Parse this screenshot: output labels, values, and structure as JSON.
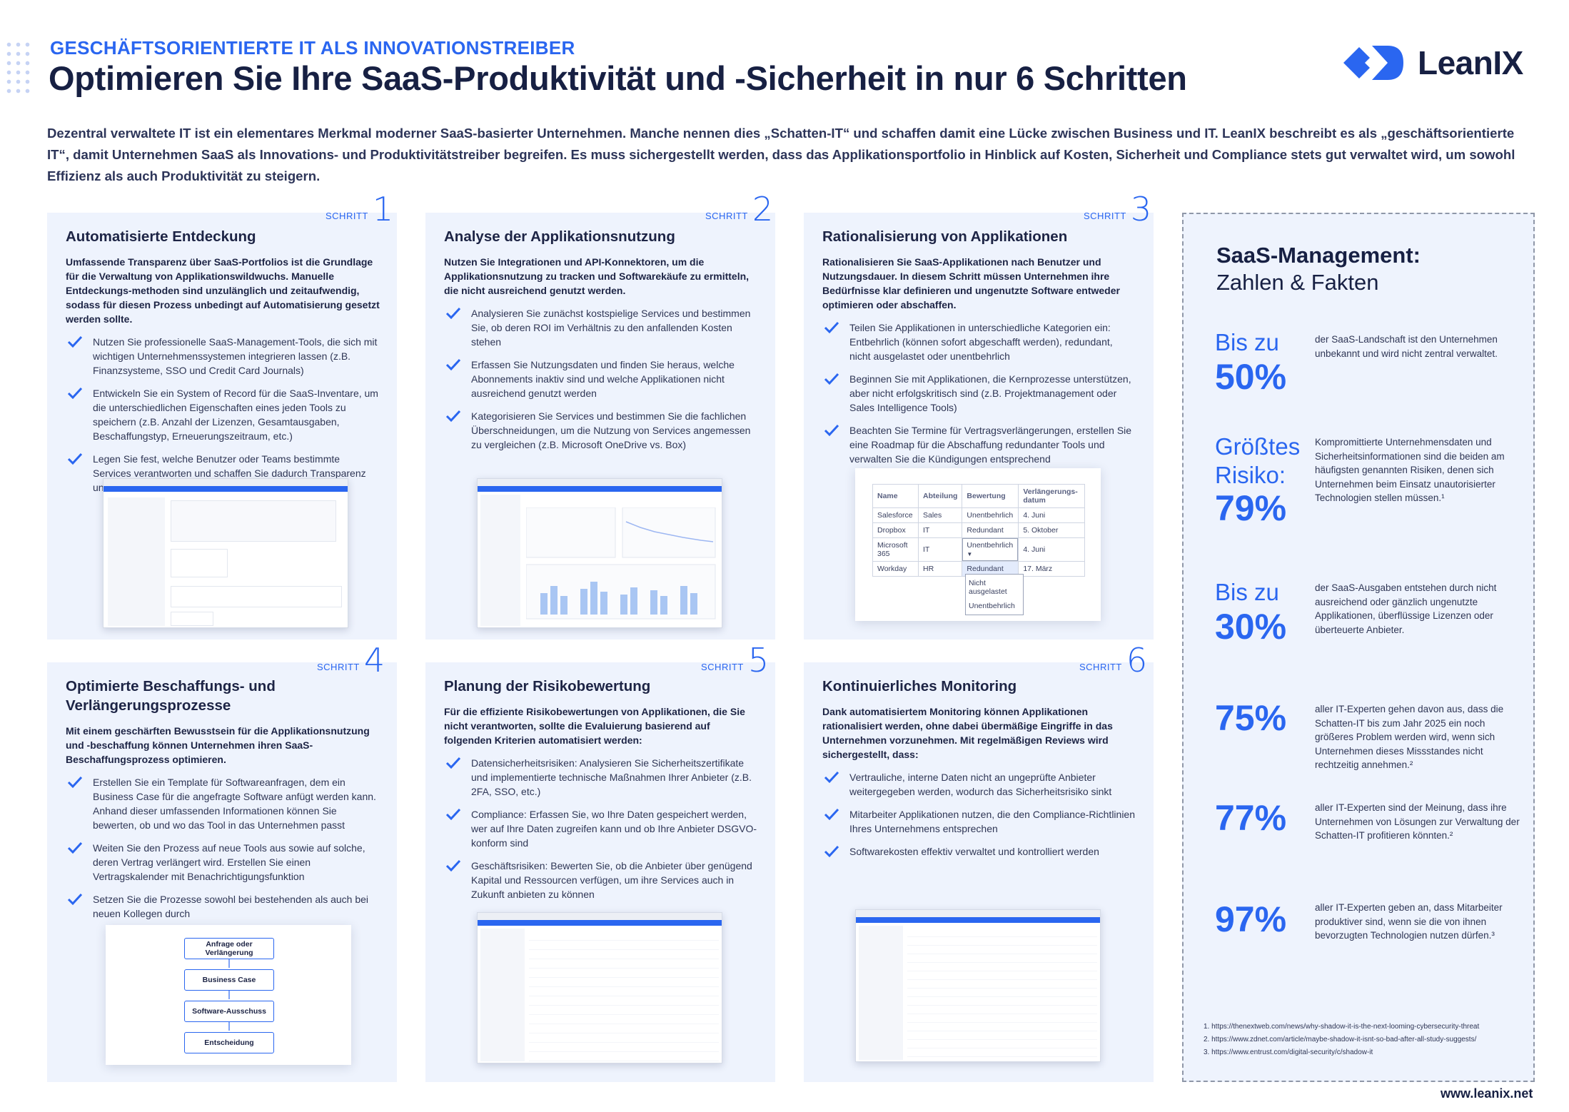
{
  "header": {
    "eyebrow": "GESCHÄFTSORIENTIERTE IT ALS INNOVATIONSTREIBER",
    "headline": "Optimieren Sie Ihre SaaS-Produktivität und -Sicherheit in nur 6 Schritten",
    "logo_text": "LeanIX"
  },
  "intro": "Dezentral verwaltete IT ist ein elementares Merkmal moderner SaaS-basierter Unternehmen. Manche nennen dies „Schatten-IT“ und schaffen damit eine Lücke zwischen Business und IT. LeanIX beschreibt es als „geschäftsorientierte IT“, damit Unternehmen SaaS als Innovations- und Produktivitätstreiber begreifen. Es muss sichergestellt werden, dass das Applikationsportfolio in Hinblick auf Kosten, Sicherheit und Compliance stets gut verwaltet wird, um sowohl Effizienz als auch Produktivität zu steigern.",
  "step_label": "SCHRITT",
  "steps": [
    {
      "num": "1",
      "title": "Automatisierte Entdeckung",
      "lead": "Umfassende Transparenz über SaaS-Portfolios ist die Grundlage für die Verwaltung von Applikationswildwuchs. Manuelle Entdeckungs-methoden sind unzulänglich und zeitaufwendig, sodass für diesen Prozess unbedingt auf Automatisierung gesetzt werden sollte.",
      "bullets": [
        "Nutzen Sie professionelle SaaS-Management-Tools, die sich mit wichtigen Unternehmenssystemen integrieren lassen (z.B. Finanzsysteme, SSO und Credit Card Journals)",
        "Entwickeln Sie ein System of Record für die SaaS-Inventare, um die unterschiedlichen Eigenschaften eines jeden Tools zu speichern (z.B. Anzahl der Lizenzen, Gesamtausgaben, Beschaffungstyp, Erneuerungszeitraum, etc.)",
        "Legen Sie fest, welche Benutzer oder Teams bestimmte Services verantworten und schaffen Sie dadurch Transparenz und Verantwortungsbewusstsein"
      ]
    },
    {
      "num": "2",
      "title": "Analyse der Applikationsnutzung",
      "lead": "Nutzen Sie Integrationen und API-Konnektoren, um die Applikationsnutzung zu tracken und Softwarekäufe zu ermitteln, die nicht ausreichend genutzt werden.",
      "bullets": [
        "Analysieren Sie zunächst kostspielige Services und bestimmen Sie, ob deren ROI im Verhältnis zu den anfallenden Kosten stehen",
        "Erfassen Sie Nutzungsdaten und finden Sie heraus, welche Abonnements inaktiv sind und welche Applikationen nicht ausreichend genutzt werden",
        "Kategorisieren Sie Services und bestimmen Sie die fachlichen Überschneidungen, um die Nutzung von Services angemessen zu vergleichen (z.B. Microsoft OneDrive vs. Box)"
      ]
    },
    {
      "num": "3",
      "title": "Rationalisierung von Applikationen",
      "lead": "Rationalisieren Sie SaaS-Applikationen nach Benutzer und Nutzungsdauer. In diesem Schritt müssen Unternehmen ihre Bedürfnisse klar definieren und ungenutzte Software entweder optimieren oder abschaffen.",
      "bullets": [
        "Teilen Sie Applikationen in unterschiedliche Kategorien ein: Entbehrlich (können sofort abgeschafft werden), redundant, nicht ausgelastet oder unentbehrlich",
        "Beginnen Sie mit Applikationen, die Kernprozesse unterstützen, aber nicht erfolgskritisch sind (z.B. Projektmanagement oder Sales Intelligence Tools)",
        "Beachten Sie Termine für Vertragsverlängerungen, erstellen Sie eine Roadmap für die Abschaffung redundanter Tools und verwalten Sie die Kündigungen entsprechend"
      ]
    },
    {
      "num": "4",
      "title": "Optimierte Beschaffungs- und Verlängerungsprozesse",
      "lead": "Mit einem geschärften Bewusstsein für die Applikationsnutzung und -beschaffung können Unternehmen ihren SaaS-Beschaffungsprozess optimieren.",
      "bullets": [
        "Erstellen Sie ein Template für Softwareanfragen, dem ein Business Case für die angefragte Software anfügt werden kann. Anhand dieser umfassenden Informationen können Sie bewerten, ob und wo das Tool in das Unternehmen passt",
        "Weiten Sie den Prozess auf neue Tools aus sowie auf solche, deren Vertrag verlängert wird. Erstellen Sie einen Vertragskalender mit Benachrichtigungsfunktion",
        "Setzen Sie die Prozesse sowohl bei bestehenden als auch bei neuen Kollegen durch"
      ]
    },
    {
      "num": "5",
      "title": "Planung der Risikobewertung",
      "lead": "Für die effiziente Risikobewertungen von Applikationen, die Sie nicht verantworten, sollte die Evaluierung basierend auf folgenden Kriterien automatisiert werden:",
      "bullets": [
        "Datensicherheitsrisiken: Analysieren Sie Sicherheitszertifikate und implementierte technische Maßnahmen Ihrer Anbieter (z.B. 2FA, SSO, etc.)",
        "Compliance: Erfassen Sie, wo Ihre Daten gespeichert werden, wer auf Ihre Daten zugreifen kann und ob Ihre Anbieter DSGVO-konform sind",
        "Geschäftsrisiken: Bewerten Sie, ob die Anbieter über genügend Kapital und Ressourcen verfügen, um ihre Services auch in Zukunft anbieten zu können"
      ]
    },
    {
      "num": "6",
      "title": "Kontinuierliches Monitoring",
      "lead": "Dank automatisiertem Monitoring können Applikationen rationalisiert werden, ohne dabei übermäßige Eingriffe in das Unternehmen vorzunehmen. Mit regelmäßigen Reviews wird sichergestellt, dass:",
      "bullets": [
        "Vertrauliche, interne Daten nicht an ungeprüfte Anbieter weitergegeben werden, wodurch das Sicherheitsrisiko sinkt",
        "Mitarbeiter Applikationen nutzen, die den Compliance-Richtlinien Ihres Unternehmens entsprechen",
        "Softwarekosten effektiv verwaltet und kontrolliert werden"
      ]
    }
  ],
  "table3": {
    "headers": [
      "Name",
      "Abteilung",
      "Bewertung",
      "Verlängerungs-datum"
    ],
    "rows": [
      [
        "Salesforce",
        "Sales",
        "Unentbehrlich",
        "4. Juni"
      ],
      [
        "Dropbox",
        "IT",
        "Redundant",
        "5. Oktober"
      ],
      [
        "Microsoft 365",
        "IT",
        "Unentbehrlich",
        "4. Juni"
      ],
      [
        "Workday",
        "HR",
        "Redundant",
        "17. März"
      ]
    ],
    "dropdown": [
      "Nicht ausgelastet",
      "Unentbehrlich"
    ]
  },
  "flow": [
    "Anfrage oder Verlängerung",
    "Business Case",
    "Software-Ausschuss",
    "Entscheidung"
  ],
  "sidebar": {
    "title": "SaaS-Management:",
    "subtitle": "Zahlen & Fakten",
    "facts": [
      {
        "pre": "Bis zu",
        "big": "50%",
        "text": "der SaaS-Landschaft ist den Unternehmen unbekannt und wird nicht zentral verwaltet."
      },
      {
        "pre": "Größtes Risiko:",
        "big": "79%",
        "text": "Kompromittierte Unternehmensdaten und Sicherheitsinformationen sind die beiden am häufigsten genannten Risiken, denen sich Unternehmen beim Einsatz unautorisierter Technologien stellen müssen.¹"
      },
      {
        "pre": "Bis zu",
        "big": "30%",
        "text": "der SaaS-Ausgaben entstehen durch nicht ausreichend oder gänzlich ungenutzte Applikationen, überflüssige Lizenzen oder überteuerte Anbieter."
      },
      {
        "pre": "",
        "big": "75%",
        "text": "aller IT-Experten gehen davon aus, dass die Schatten-IT bis zum Jahr 2025 ein noch größeres Problem werden wird, wenn sich Unternehmen dieses Missstandes nicht rechtzeitig annehmen.²"
      },
      {
        "pre": "",
        "big": "77%",
        "text": "aller IT-Experten sind der Meinung, dass ihre Unternehmen von Lösungen zur Verwaltung der Schatten-IT profitieren könnten.²"
      },
      {
        "pre": "",
        "big": "97%",
        "text": "aller IT-Experten geben an, dass Mitarbeiter produktiver sind, wenn sie die von ihnen bevorzugten Technologien nutzen dürfen.³"
      }
    ],
    "refs": [
      "1. https://thenextweb.com/news/why-shadow-it-is-the-next-looming-cybersecurity-threat",
      "2. https://www.zdnet.com/article/maybe-shadow-it-isnt-so-bad-after-all-study-suggests/",
      "3. https://www.entrust.com/digital-security/c/shadow-it"
    ]
  },
  "footer_url": "www.leanix.net",
  "colors": {
    "accent": "#2a66f0",
    "card_bg": "#eef3fd",
    "text": "#172043"
  }
}
